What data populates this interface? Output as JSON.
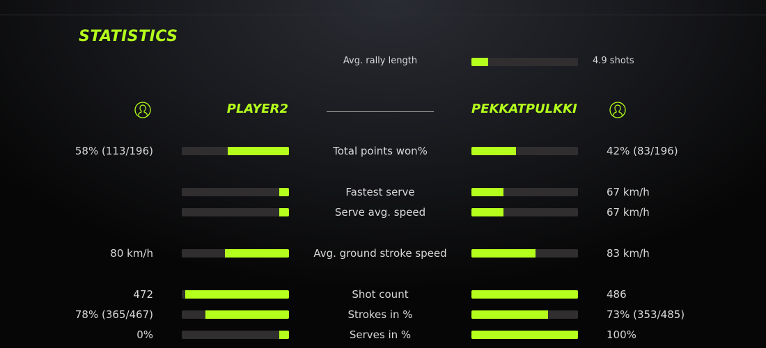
{
  "title": "STATISTICS",
  "accent": "#b4ff1c",
  "rally": {
    "label": "Avg. rally length",
    "value": "4.9 shots",
    "fill": 0.16
  },
  "players": {
    "left": {
      "name": "PLAYER2",
      "icon": "user-icon"
    },
    "right": {
      "name": "PEKKATPULKKI",
      "icon": "user-icon"
    }
  },
  "stats": [
    {
      "label": "Total points won%",
      "left": "58% (113/196)",
      "right": "42% (83/196)",
      "lfill": 0.57,
      "rfill": 0.42
    },
    {
      "label": "Fastest serve",
      "left": "",
      "right": "67 km/h",
      "lfill": 0.09,
      "rfill": 0.3
    },
    {
      "label": "Serve avg. speed",
      "left": "",
      "right": "67 km/h",
      "lfill": 0.09,
      "rfill": 0.3
    },
    {
      "label": "Avg. ground stroke speed",
      "left": "80 km/h",
      "right": "83 km/h",
      "lfill": 0.6,
      "rfill": 0.6
    },
    {
      "label": "Shot count",
      "left": "472",
      "right": "486",
      "lfill": 0.97,
      "rfill": 1.0
    },
    {
      "label": "Strokes in %",
      "left": "78% (365/467)",
      "right": "73% (353/485)",
      "lfill": 0.78,
      "rfill": 0.72
    },
    {
      "label": "Serves in %",
      "left": "0%",
      "right": "100%",
      "lfill": 0.09,
      "rfill": 1.0
    }
  ]
}
